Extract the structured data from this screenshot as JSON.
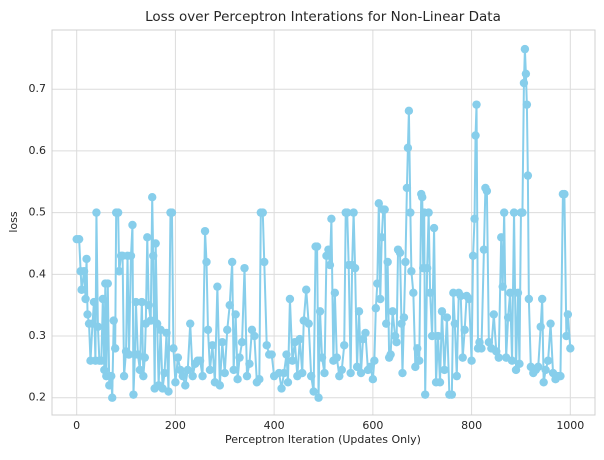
{
  "chart_data": {
    "type": "line",
    "title": "Loss over Perceptron Interations for Non-Linear Data",
    "x_label": "Perceptron Iteration (Updates Only)",
    "y_label": "loss",
    "color": "#87ceeb",
    "grid": true,
    "xlim": [
      -50,
      1050
    ],
    "ylim": [
      0.172,
      0.796
    ],
    "xticks": [
      0,
      200,
      400,
      600,
      800,
      1000
    ],
    "yticks": [
      0.2,
      0.3,
      0.4,
      0.5,
      0.6,
      0.7
    ],
    "x": [
      0,
      5,
      8,
      10,
      15,
      18,
      20,
      22,
      25,
      28,
      32,
      35,
      38,
      40,
      43,
      46,
      50,
      53,
      56,
      58,
      60,
      63,
      66,
      70,
      72,
      75,
      78,
      80,
      84,
      86,
      90,
      93,
      96,
      100,
      103,
      106,
      110,
      113,
      115,
      118,
      120,
      124,
      128,
      132,
      135,
      138,
      140,
      143,
      146,
      150,
      153,
      155,
      158,
      160,
      163,
      166,
      170,
      174,
      178,
      182,
      186,
      190,
      193,
      196,
      200,
      205,
      210,
      215,
      220,
      225,
      230,
      235,
      240,
      245,
      250,
      255,
      260,
      263,
      266,
      270,
      275,
      280,
      285,
      290,
      295,
      300,
      305,
      310,
      315,
      318,
      322,
      326,
      330,
      335,
      340,
      345,
      350,
      355,
      360,
      365,
      370,
      373,
      377,
      380,
      385,
      390,
      395,
      400,
      410,
      415,
      420,
      425,
      428,
      432,
      437,
      442,
      447,
      452,
      457,
      460,
      465,
      470,
      475,
      480,
      484,
      487,
      490,
      493,
      497,
      502,
      506,
      510,
      513,
      516,
      520,
      523,
      527,
      532,
      537,
      542,
      545,
      548,
      551,
      555,
      558,
      561,
      564,
      568,
      572,
      576,
      580,
      585,
      590,
      595,
      600,
      603,
      606,
      609,
      612,
      615,
      618,
      621,
      624,
      627,
      630,
      633,
      636,
      640,
      645,
      648,
      651,
      655,
      658,
      660,
      663,
      666,
      669,
      671,
      673,
      676,
      678,
      682,
      686,
      690,
      694,
      698,
      700,
      702,
      704,
      706,
      710,
      713,
      716,
      720,
      724,
      728,
      732,
      736,
      740,
      745,
      750,
      755,
      760,
      763,
      766,
      770,
      774,
      778,
      782,
      786,
      790,
      795,
      800,
      803,
      806,
      808,
      810,
      813,
      816,
      820,
      825,
      828,
      831,
      835,
      840,
      845,
      850,
      855,
      860,
      863,
      866,
      870,
      874,
      878,
      882,
      886,
      890,
      894,
      897,
      900,
      903,
      906,
      908,
      910,
      912,
      914,
      916,
      920,
      925,
      930,
      935,
      940,
      943,
      946,
      950,
      955,
      960,
      965,
      970,
      975,
      980,
      985,
      988,
      992,
      995,
      1000
    ],
    "values": [
      0.457,
      0.457,
      0.405,
      0.375,
      0.405,
      0.36,
      0.425,
      0.335,
      0.32,
      0.26,
      0.32,
      0.355,
      0.26,
      0.5,
      0.315,
      0.26,
      0.26,
      0.36,
      0.245,
      0.385,
      0.235,
      0.385,
      0.22,
      0.235,
      0.2,
      0.325,
      0.28,
      0.5,
      0.5,
      0.405,
      0.43,
      0.43,
      0.235,
      0.275,
      0.43,
      0.27,
      0.43,
      0.48,
      0.205,
      0.27,
      0.355,
      0.27,
      0.245,
      0.355,
      0.235,
      0.265,
      0.32,
      0.46,
      0.35,
      0.325,
      0.525,
      0.43,
      0.215,
      0.45,
      0.32,
      0.22,
      0.31,
      0.215,
      0.24,
      0.305,
      0.21,
      0.5,
      0.5,
      0.28,
      0.225,
      0.265,
      0.245,
      0.235,
      0.22,
      0.245,
      0.32,
      0.235,
      0.255,
      0.26,
      0.26,
      0.235,
      0.47,
      0.42,
      0.31,
      0.245,
      0.285,
      0.225,
      0.38,
      0.22,
      0.29,
      0.24,
      0.31,
      0.35,
      0.42,
      0.245,
      0.335,
      0.23,
      0.265,
      0.29,
      0.41,
      0.235,
      0.255,
      0.31,
      0.3,
      0.225,
      0.23,
      0.5,
      0.5,
      0.42,
      0.285,
      0.27,
      0.27,
      0.235,
      0.24,
      0.215,
      0.24,
      0.27,
      0.225,
      0.36,
      0.26,
      0.29,
      0.235,
      0.295,
      0.24,
      0.325,
      0.375,
      0.32,
      0.235,
      0.21,
      0.445,
      0.445,
      0.2,
      0.34,
      0.265,
      0.24,
      0.43,
      0.44,
      0.415,
      0.49,
      0.26,
      0.37,
      0.265,
      0.235,
      0.245,
      0.285,
      0.5,
      0.5,
      0.415,
      0.24,
      0.415,
      0.5,
      0.41,
      0.25,
      0.34,
      0.24,
      0.295,
      0.305,
      0.245,
      0.25,
      0.23,
      0.26,
      0.345,
      0.385,
      0.515,
      0.36,
      0.46,
      0.505,
      0.505,
      0.32,
      0.42,
      0.265,
      0.27,
      0.34,
      0.3,
      0.29,
      0.44,
      0.435,
      0.32,
      0.24,
      0.33,
      0.42,
      0.54,
      0.605,
      0.665,
      0.5,
      0.405,
      0.37,
      0.25,
      0.28,
      0.26,
      0.53,
      0.525,
      0.41,
      0.5,
      0.205,
      0.41,
      0.5,
      0.37,
      0.3,
      0.475,
      0.225,
      0.3,
      0.225,
      0.34,
      0.245,
      0.33,
      0.205,
      0.205,
      0.37,
      0.32,
      0.235,
      0.37,
      0.365,
      0.265,
      0.31,
      0.365,
      0.36,
      0.26,
      0.43,
      0.49,
      0.625,
      0.675,
      0.28,
      0.29,
      0.28,
      0.44,
      0.54,
      0.535,
      0.29,
      0.28,
      0.335,
      0.275,
      0.265,
      0.46,
      0.38,
      0.5,
      0.265,
      0.33,
      0.37,
      0.26,
      0.5,
      0.245,
      0.37,
      0.255,
      0.5,
      0.5,
      0.71,
      0.765,
      0.725,
      0.675,
      0.56,
      0.36,
      0.25,
      0.24,
      0.245,
      0.25,
      0.315,
      0.36,
      0.225,
      0.245,
      0.26,
      0.32,
      0.24,
      0.23,
      0.235,
      0.235,
      0.53,
      0.53,
      0.3,
      0.335,
      0.28
    ]
  }
}
